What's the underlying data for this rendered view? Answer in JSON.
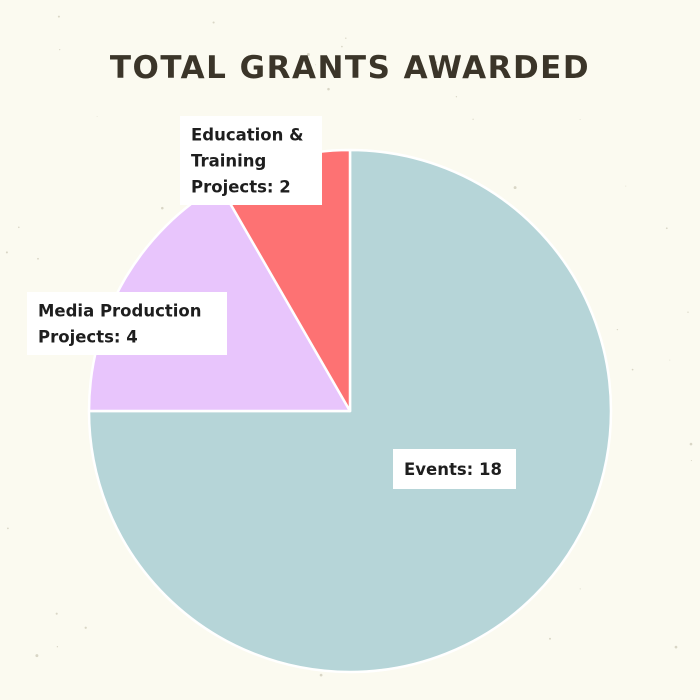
{
  "chart_data": {
    "type": "pie",
    "title": "TOTAL GRANTS AWARDED",
    "start": "12 o'clock",
    "direction": "clockwise",
    "slices": [
      {
        "name": "Events",
        "value": 18,
        "color": "#b6d5d8",
        "label_lines": [
          "Events: 18"
        ]
      },
      {
        "name": "Media Production Projects",
        "value": 4,
        "color": "#e8c5fc",
        "label_lines": [
          "Media Production",
          "Projects: 4"
        ]
      },
      {
        "name": "Education & Training Projects",
        "value": 2,
        "color": "#fd7273",
        "label_lines": [
          "Education &",
          "Training",
          "Projects: 2"
        ]
      }
    ],
    "colors": {
      "background": "#fbfaf0",
      "title": "#3b3529",
      "slice_border": "#ffffff",
      "label_box": "#ffffff",
      "label_text": "#1e1e1e"
    }
  }
}
